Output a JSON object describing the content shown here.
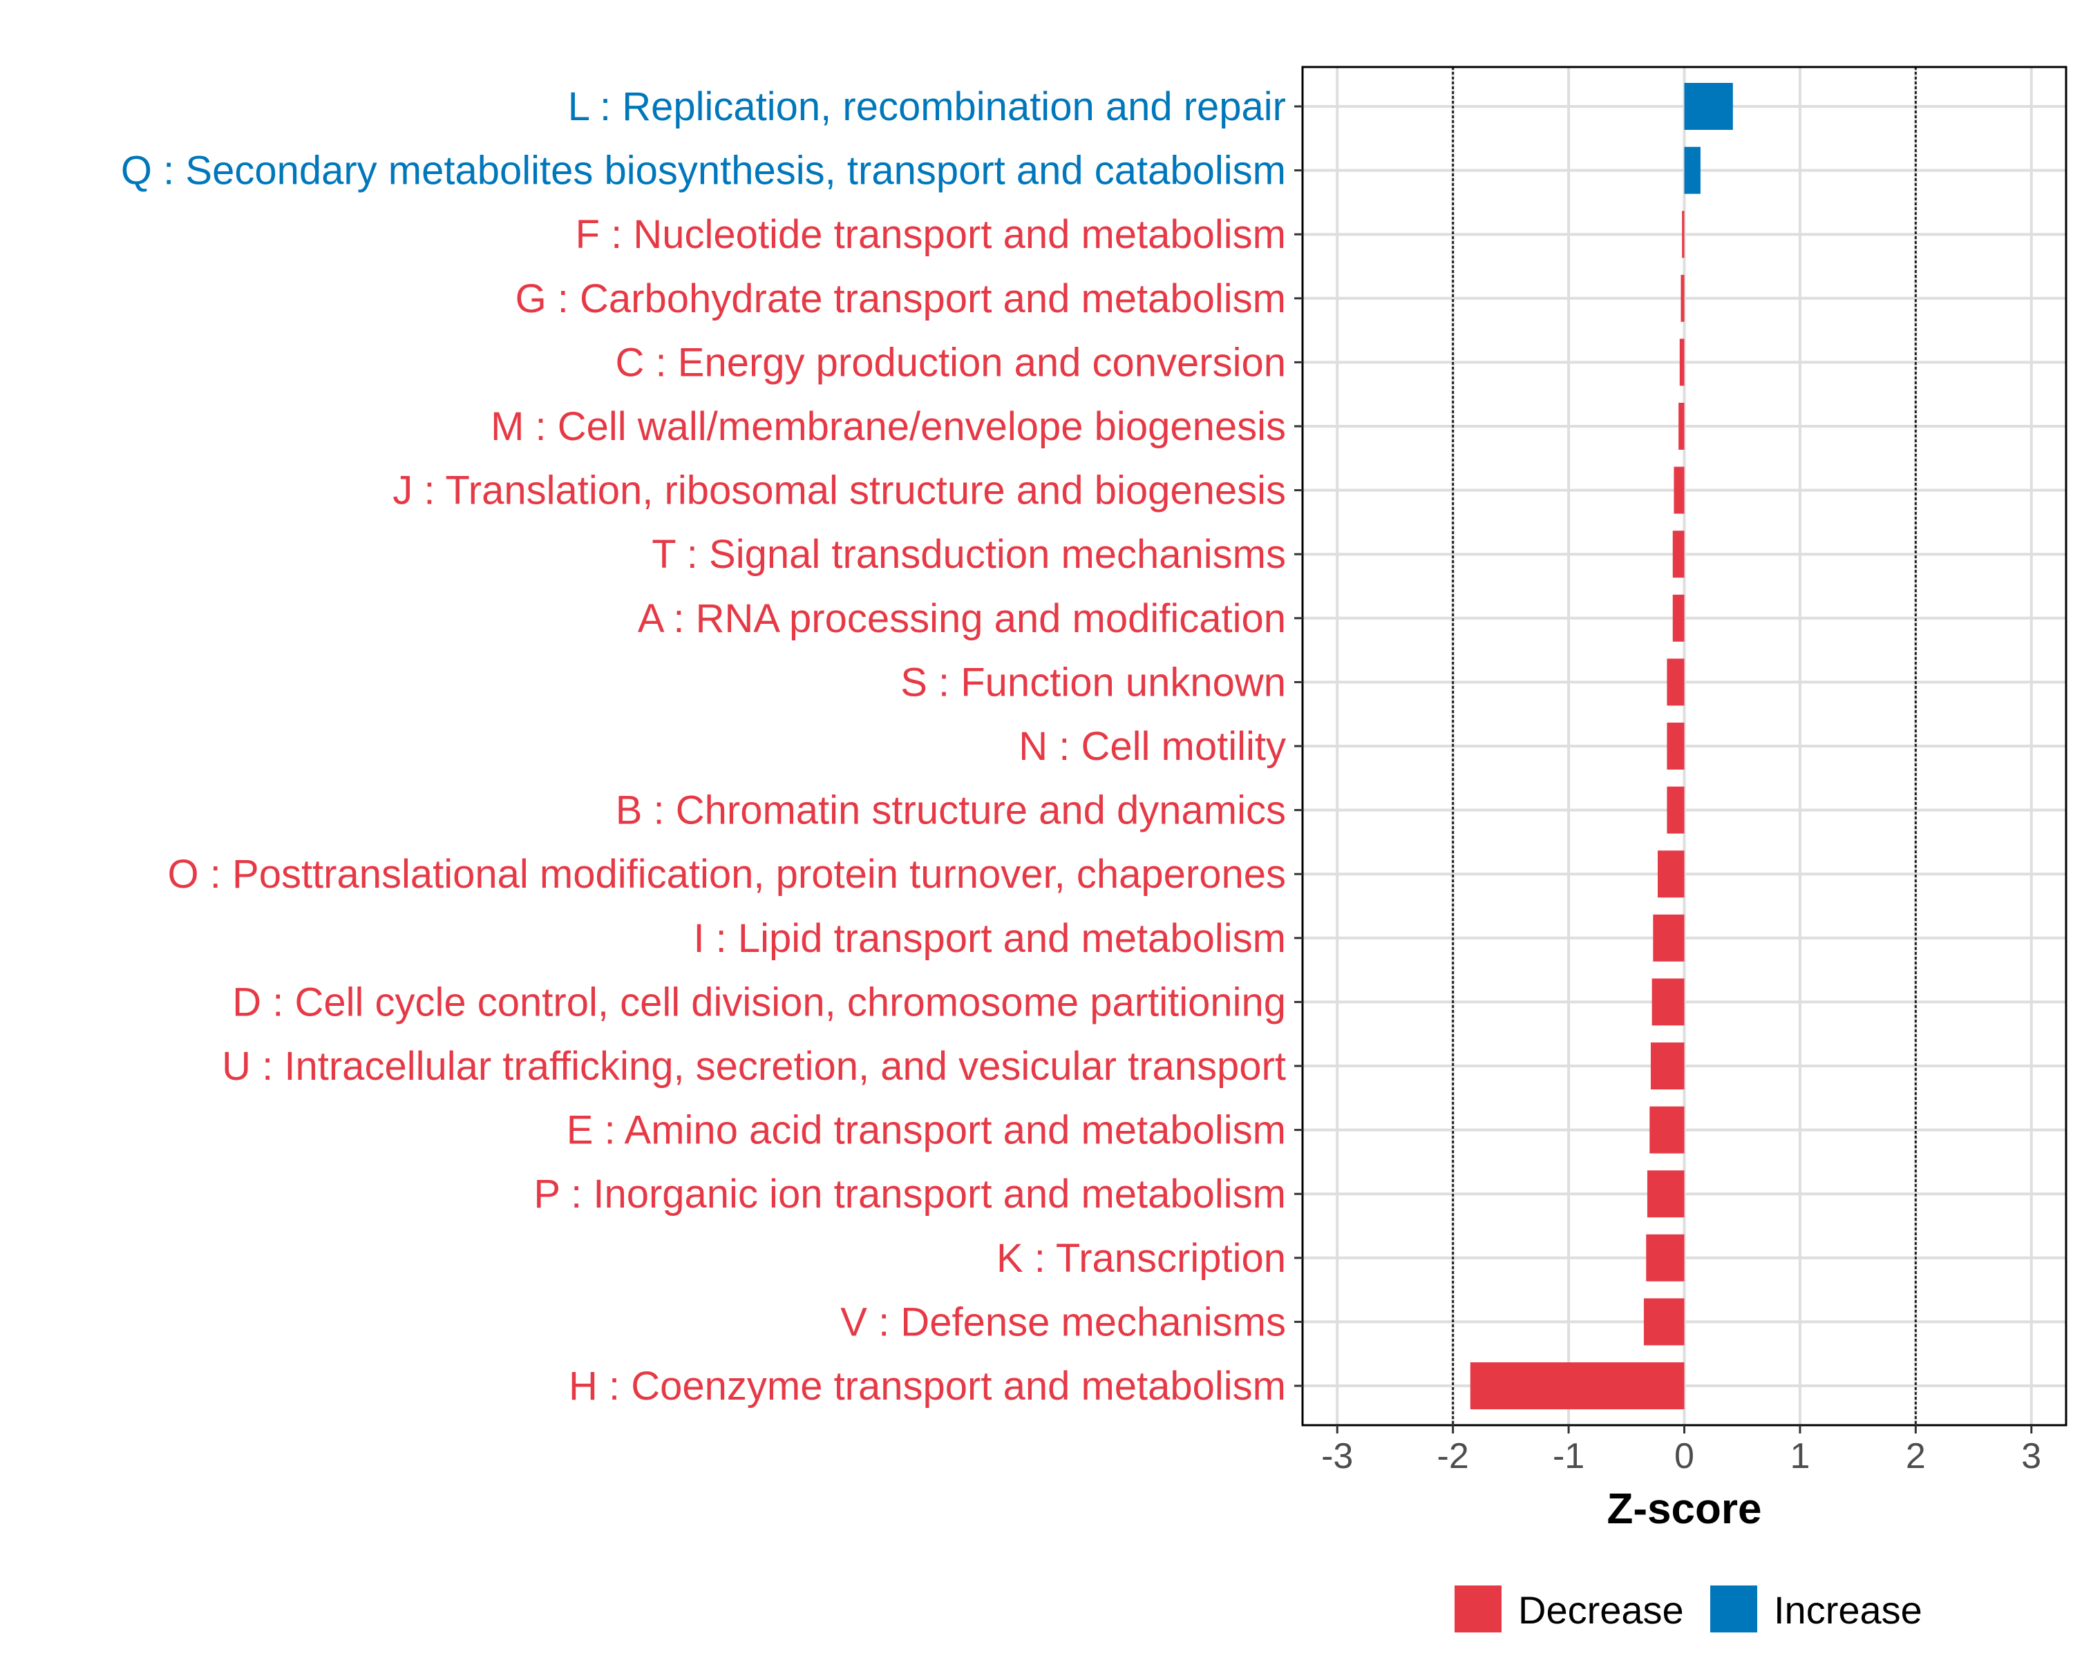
{
  "chart_data": {
    "type": "bar",
    "orientation": "horizontal",
    "title": "",
    "xlabel": "Z-score",
    "ylabel": "",
    "xlim": [
      -3,
      3
    ],
    "x_ticks": [
      -3,
      -2,
      -1,
      0,
      1,
      2,
      3
    ],
    "reference_lines": [
      -2,
      2
    ],
    "grid": true,
    "categories": [
      "L : Replication, recombination and repair",
      "Q : Secondary metabolites biosynthesis, transport and catabolism",
      "F : Nucleotide transport and metabolism",
      "G : Carbohydrate transport and metabolism",
      "C : Energy production and conversion",
      "M : Cell wall/membrane/envelope biogenesis",
      "J : Translation, ribosomal structure and biogenesis",
      "T : Signal transduction mechanisms",
      "A : RNA processing and modification",
      "S : Function unknown",
      "N : Cell motility",
      "B : Chromatin structure and dynamics",
      "O : Posttranslational modification, protein turnover, chaperones",
      "I : Lipid transport and metabolism",
      "D : Cell cycle control, cell division, chromosome partitioning",
      "U : Intracellular trafficking, secretion, and vesicular transport",
      "E : Amino acid transport and metabolism",
      "P : Inorganic ion transport and metabolism",
      "K : Transcription",
      "V : Defense mechanisms",
      "H : Coenzyme transport and metabolism"
    ],
    "values": [
      0.42,
      0.14,
      -0.02,
      -0.03,
      -0.04,
      -0.05,
      -0.09,
      -0.1,
      -0.1,
      -0.15,
      -0.15,
      -0.15,
      -0.23,
      -0.27,
      -0.28,
      -0.29,
      -0.3,
      -0.32,
      -0.33,
      -0.35,
      -1.85
    ],
    "series": [
      {
        "name": "Decrease",
        "color": "#e63946"
      },
      {
        "name": "Increase",
        "color": "#0077bb"
      }
    ],
    "legend": {
      "position": "bottom",
      "items": [
        "Decrease",
        "Increase"
      ]
    }
  }
}
